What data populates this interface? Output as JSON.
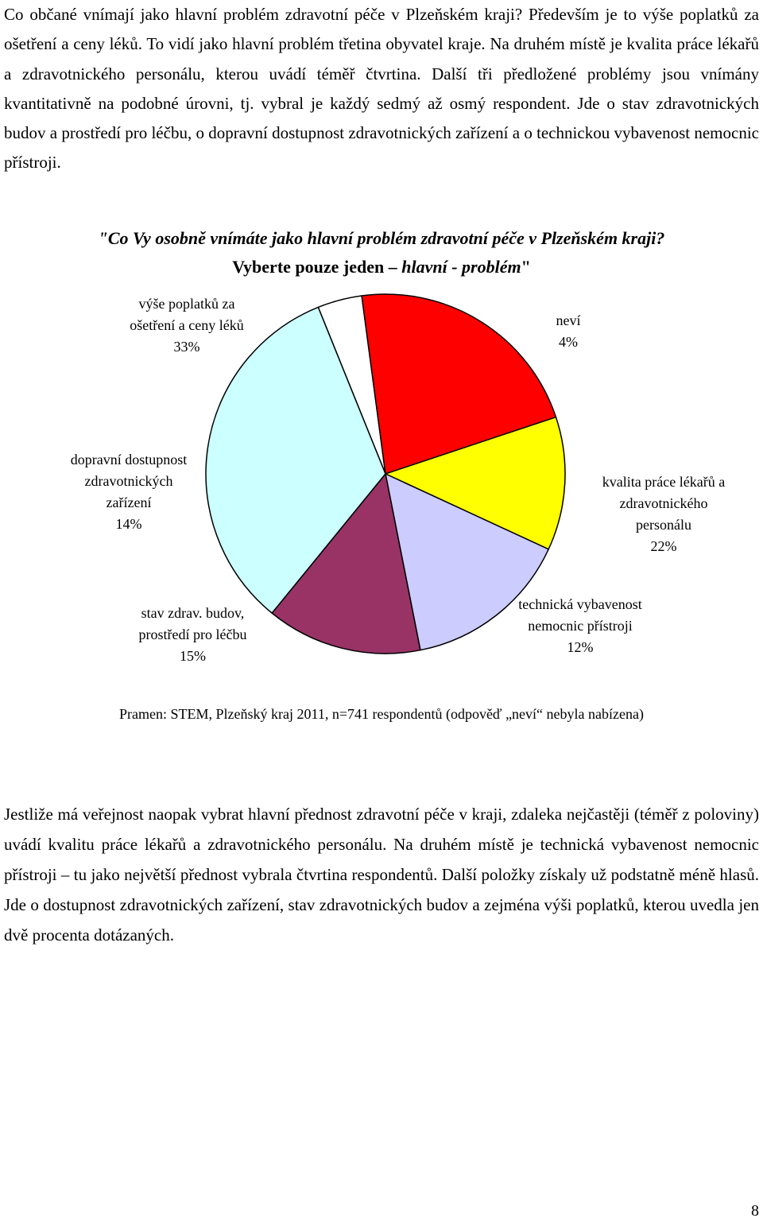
{
  "intro_paragraph": "Co občané vnímají jako hlavní problém zdravotní péče v Plzeňském kraji? Především je to výše poplatků za ošetření a ceny léků. To vidí jako hlavní problém třetina obyvatel kraje. Na druhém místě je kvalita práce lékařů a zdravotnického personálu, kterou uvádí téměř čtvrtina. Další tři předložené problémy jsou vnímány kvantitativně na podobné úrovni, tj. vybral je každý sedmý až osmý respondent. Jde o stav zdravotnických budov a prostředí pro léčbu, o dopravní dostupnost zdravotnických zařízení a o technickou vybavenost nemocnic přístroji.",
  "chart_title_line1": "\"Co Vy osobně vnímáte jako hlavní problém zdravotní péče v Plzeňském kraji?",
  "chart_title_line2_a": "Vyberte pouze jeden – ",
  "chart_title_line2_b": "hlavní - problém",
  "chart_title_line2_c": "\"",
  "chart_data": {
    "type": "pie",
    "slices": [
      {
        "label_lines": [
          "neví"
        ],
        "value": 4,
        "value_label": "4%",
        "color": "#ffffff"
      },
      {
        "label_lines": [
          "kvalita práce lékařů a",
          "zdravotnického",
          "personálu"
        ],
        "value": 22,
        "value_label": "22%",
        "color": "#ff0000"
      },
      {
        "label_lines": [
          "technická vybavenost",
          "nemocnic přístroji"
        ],
        "value": 12,
        "value_label": "12%",
        "color": "#ffff00"
      },
      {
        "label_lines": [
          "stav zdrav. budov,",
          "prostředí pro léčbu"
        ],
        "value": 15,
        "value_label": "15%",
        "color": "#ccccff"
      },
      {
        "label_lines": [
          "dopravní dostupnost",
          "zdravotnických",
          "zařízení"
        ],
        "value": 14,
        "value_label": "14%",
        "color": "#993366"
      },
      {
        "label_lines": [
          "výše poplatků za",
          "ošetření a ceny léků"
        ],
        "value": 33,
        "value_label": "33%",
        "color": "#ccffff"
      }
    ],
    "start_angle_deg": -22,
    "direction": "clockwise"
  },
  "source_note": "Pramen: STEM, Plzeňský kraj 2011,  n=741 respondentů (odpověď „neví“ nebyla nabízena)",
  "second_paragraph": "Jestliže má veřejnost naopak vybrat hlavní přednost zdravotní péče v kraji, zdaleka nejčastěji (téměř z poloviny) uvádí kvalitu práce lékařů a zdravotnického personálu. Na druhém místě je technická vybavenost nemocnic přístroji – tu jako největší přednost vybrala čtvrtina respondentů. Další položky získaly už podstatně méně hlasů. Jde o dostupnost zdravotnických zařízení, stav zdravotnických budov a zejména výši poplatků, kterou uvedla jen dvě procenta dotázaných.",
  "page_number": "8"
}
